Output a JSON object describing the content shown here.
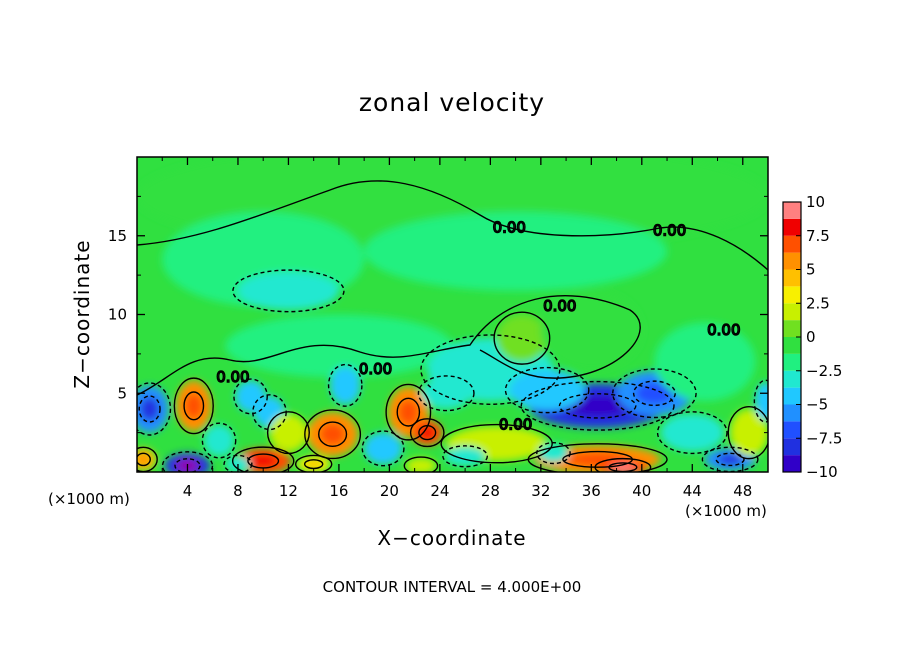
{
  "chart_data": {
    "type": "heatmap",
    "title": "zonal velocity",
    "xlabel": "X−coordinate",
    "ylabel": "Z−coordinate",
    "x_unit": "(×1000 m)",
    "x_ticks": [
      "4",
      "8",
      "12",
      "16",
      "20",
      "24",
      "28",
      "32",
      "36",
      "40",
      "44",
      "48"
    ],
    "x_tick_values": [
      4,
      8,
      12,
      16,
      20,
      24,
      28,
      32,
      36,
      40,
      44,
      48
    ],
    "y_ticks": [
      "5",
      "10",
      "15"
    ],
    "y_tick_values": [
      5,
      10,
      15
    ],
    "xlim": [
      0,
      50
    ],
    "ylim": [
      0,
      20
    ],
    "colorbar": {
      "ticks": [
        "10",
        "7.5",
        "5",
        "2.5",
        "0",
        "−2.5",
        "−5",
        "−7.5",
        "−10"
      ],
      "values": [
        10,
        7.5,
        5,
        2.5,
        0,
        -2.5,
        -5,
        -7.5,
        -10
      ],
      "range": [
        -10,
        10
      ]
    },
    "contour_labels": [
      {
        "text": "0.00",
        "x": 29.5,
        "y": 15.5
      },
      {
        "text": "0.00",
        "x": 42.2,
        "y": 15.3
      },
      {
        "text": "0.00",
        "x": 33.5,
        "y": 10.5
      },
      {
        "text": "0.00",
        "x": 46.5,
        "y": 9.0
      },
      {
        "text": "0.00",
        "x": 7.6,
        "y": 6.0
      },
      {
        "text": "0.00",
        "x": 18.9,
        "y": 6.5
      },
      {
        "text": "0.00",
        "x": 30.0,
        "y": 3.0
      }
    ],
    "blobs": [
      {
        "x": 25,
        "y": 17.5,
        "rx": 25,
        "ry": 3.5,
        "v": 0.3
      },
      {
        "x": 10,
        "y": 13.5,
        "rx": 8,
        "ry": 3,
        "v": -0.8
      },
      {
        "x": 30,
        "y": 14,
        "rx": 12,
        "ry": 2.5,
        "v": -0.6
      },
      {
        "x": 12,
        "y": 11.5,
        "rx": 4,
        "ry": 1.2,
        "v": -1.5
      },
      {
        "x": 16,
        "y": 8,
        "rx": 9,
        "ry": 2,
        "v": -1.2
      },
      {
        "x": 28,
        "y": 6.5,
        "rx": 5,
        "ry": 2,
        "v": -1.6
      },
      {
        "x": 30.5,
        "y": 8.5,
        "rx": 2,
        "ry": 1.5,
        "v": 2.2
      },
      {
        "x": 36,
        "y": 9,
        "rx": 4,
        "ry": 2.5,
        "v": 1.2
      },
      {
        "x": 36.5,
        "y": 4.2,
        "rx": 5.5,
        "ry": 1.4,
        "v": -6.5
      },
      {
        "x": 41,
        "y": 5,
        "rx": 3,
        "ry": 1.4,
        "v": -4.5
      },
      {
        "x": 32.5,
        "y": 5.2,
        "rx": 3,
        "ry": 1.3,
        "v": -3.5
      },
      {
        "x": 1,
        "y": 4,
        "rx": 1.5,
        "ry": 1.5,
        "v": -5
      },
      {
        "x": 4.5,
        "y": 4.2,
        "rx": 1.4,
        "ry": 1.6,
        "v": 6.5
      },
      {
        "x": 9,
        "y": 4.8,
        "rx": 1.2,
        "ry": 1.0,
        "v": -3.5
      },
      {
        "x": 10.5,
        "y": 3.8,
        "rx": 1.2,
        "ry": 1.0,
        "v": -3.2
      },
      {
        "x": 15.5,
        "y": 2.4,
        "rx": 2.0,
        "ry": 1.4,
        "v": 6.5
      },
      {
        "x": 16.5,
        "y": 5.5,
        "rx": 1.2,
        "ry": 1.2,
        "v": -3
      },
      {
        "x": 21.5,
        "y": 3.8,
        "rx": 1.6,
        "ry": 1.6,
        "v": 6.5
      },
      {
        "x": 23,
        "y": 2.5,
        "rx": 1.2,
        "ry": 0.8,
        "v": 8
      },
      {
        "x": 19.5,
        "y": 1.5,
        "rx": 1.5,
        "ry": 1.0,
        "v": -3
      },
      {
        "x": 28.5,
        "y": 1.8,
        "rx": 4,
        "ry": 1.1,
        "v": 3.5
      },
      {
        "x": 36.5,
        "y": 0.8,
        "rx": 5,
        "ry": 0.9,
        "v": 6.5
      },
      {
        "x": 38.5,
        "y": 0.3,
        "rx": 2.0,
        "ry": 0.5,
        "v": 8.5
      },
      {
        "x": 10,
        "y": 0.7,
        "rx": 2.2,
        "ry": 0.8,
        "v": 7.5
      },
      {
        "x": 4,
        "y": 0.4,
        "rx": 1.8,
        "ry": 0.8,
        "v": -7.5
      },
      {
        "x": 0.5,
        "y": 0.8,
        "rx": 1.0,
        "ry": 0.7,
        "v": 5
      },
      {
        "x": 14,
        "y": 0.5,
        "rx": 1.3,
        "ry": 0.5,
        "v": 4
      },
      {
        "x": 47,
        "y": 0.8,
        "rx": 2,
        "ry": 0.7,
        "v": -5
      },
      {
        "x": 48.5,
        "y": 2.5,
        "rx": 1.5,
        "ry": 1.5,
        "v": 3
      },
      {
        "x": 49.8,
        "y": 4.5,
        "rx": 0.8,
        "ry": 1.2,
        "v": -3.5
      },
      {
        "x": 44,
        "y": 2.5,
        "rx": 2.5,
        "ry": 1.2,
        "v": -2.5
      },
      {
        "x": 24.5,
        "y": 5.0,
        "rx": 2,
        "ry": 1,
        "v": -2.5
      },
      {
        "x": 26,
        "y": 1.0,
        "rx": 1.6,
        "ry": 0.6,
        "v": -2.5
      },
      {
        "x": 22.5,
        "y": 0.4,
        "rx": 1.2,
        "ry": 0.5,
        "v": 3
      },
      {
        "x": 33,
        "y": 1.2,
        "rx": 1.2,
        "ry": 0.6,
        "v": -2
      },
      {
        "x": 6.5,
        "y": 2.0,
        "rx": 1.2,
        "ry": 1.0,
        "v": -2
      },
      {
        "x": 8,
        "y": 0.5,
        "rx": 1.0,
        "ry": 0.5,
        "v": -2.5
      },
      {
        "x": 45,
        "y": 7,
        "rx": 4,
        "ry": 2.5,
        "v": -1.2
      },
      {
        "x": 12,
        "y": 2.5,
        "rx": 1.5,
        "ry": 1.2,
        "v": 2.5
      }
    ]
  }
}
